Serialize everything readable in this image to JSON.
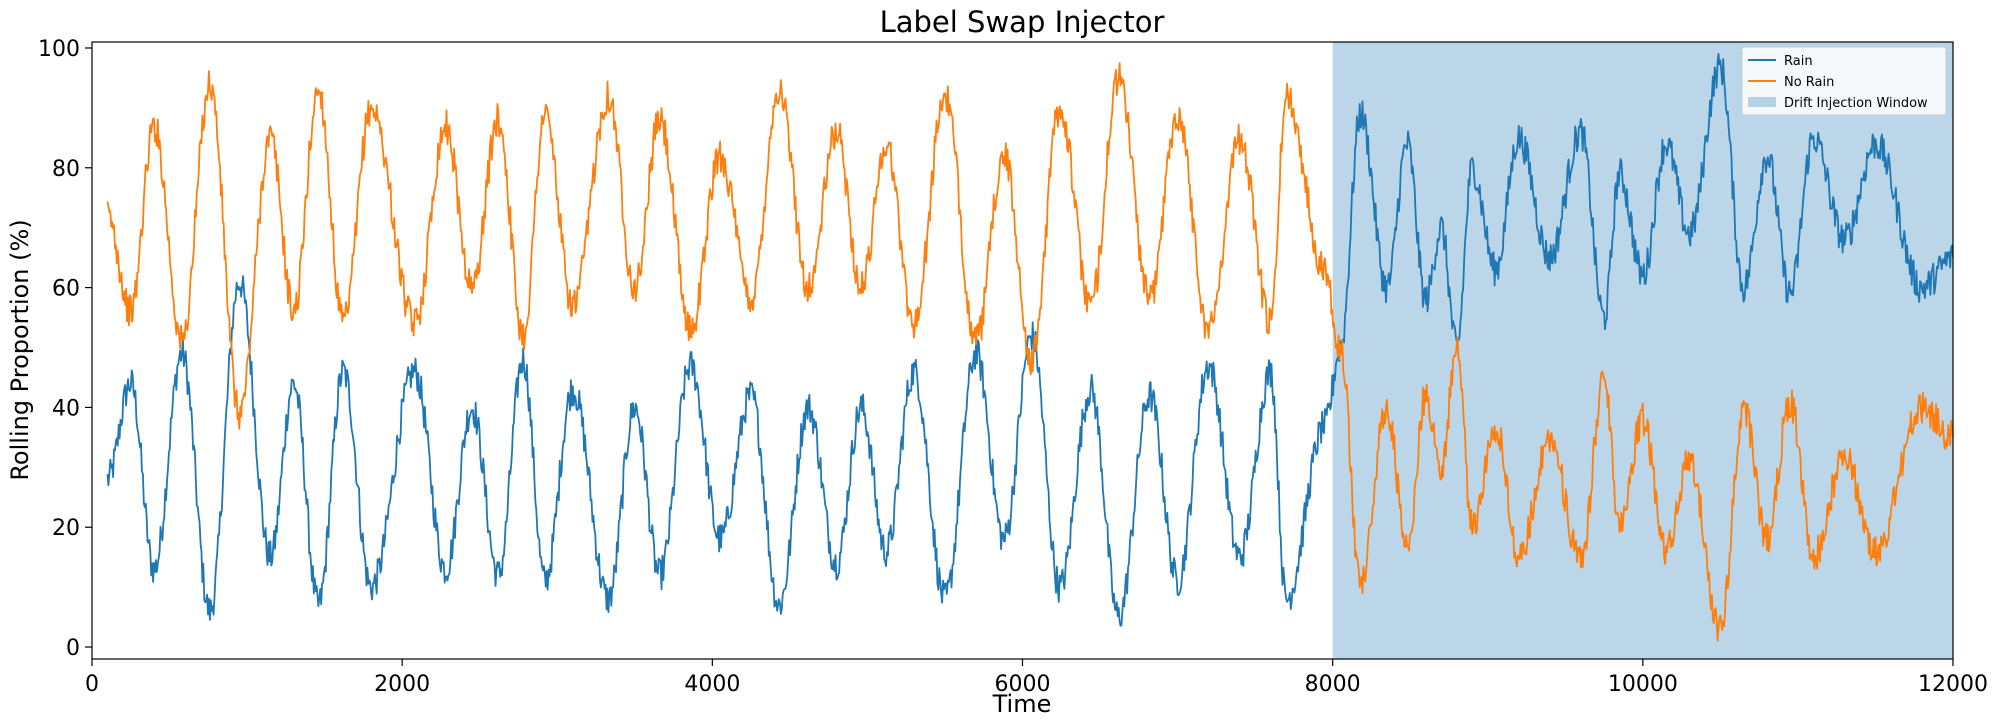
{
  "chart_data": {
    "type": "line",
    "title": "Label Swap Injector",
    "xlabel": "Time",
    "ylabel": "Rolling Proportion (%)",
    "xlim": [
      0,
      12000
    ],
    "ylim": [
      -2,
      101
    ],
    "xticks": [
      0,
      2000,
      4000,
      6000,
      8000,
      10000,
      12000
    ],
    "yticks": [
      0,
      20,
      40,
      60,
      80,
      100
    ],
    "grid": false,
    "legend_position": "top-right",
    "x": [
      100,
      250,
      400,
      580,
      760,
      950,
      1150,
      1300,
      1460,
      1620,
      1800,
      2080,
      2280,
      2450,
      2620,
      2780,
      2920,
      3100,
      3330,
      3500,
      3660,
      3860,
      4050,
      4250,
      4430,
      4620,
      4800,
      4960,
      5120,
      5300,
      5500,
      5700,
      5880,
      6060,
      6240,
      6440,
      6620,
      6820,
      7000,
      7200,
      7400,
      7600,
      7700,
      7950,
      8050,
      8180,
      8350,
      8480,
      8600,
      8700,
      8800,
      8900,
      9050,
      9200,
      9400,
      9600,
      9750,
      9850,
      10000,
      10150,
      10300,
      10500,
      10650,
      10800,
      10950,
      11100,
      11300,
      11500,
      11800,
      12000
    ],
    "series": [
      {
        "name": "Rain",
        "color": "#1f77b4",
        "values": [
          28,
          44,
          13,
          49,
          6,
          61,
          15,
          44,
          7,
          46,
          10,
          46,
          13,
          40,
          12,
          48,
          11,
          43,
          8,
          40,
          12,
          47,
          18,
          42,
          7,
          40,
          14,
          40,
          16,
          46,
          8,
          49,
          18,
          52,
          10,
          43,
          5,
          42,
          11,
          47,
          15,
          46,
          8,
          37,
          50,
          89,
          60,
          84,
          58,
          70,
          50,
          80,
          63,
          85,
          65,
          86,
          55,
          79,
          62,
          84,
          69,
          97,
          60,
          82,
          59,
          85,
          68,
          84,
          60,
          65
        ]
      },
      {
        "name": "No Rain",
        "color": "#ff7f0e",
        "values": [
          72,
          56,
          87,
          51,
          94,
          39,
          85,
          56,
          93,
          54,
          90,
          54,
          87,
          60,
          88,
          52,
          89,
          57,
          92,
          60,
          88,
          53,
          82,
          58,
          93,
          60,
          86,
          60,
          84,
          54,
          92,
          51,
          82,
          48,
          90,
          57,
          95,
          58,
          89,
          53,
          85,
          54,
          92,
          63,
          50,
          11,
          40,
          16,
          42,
          30,
          50,
          20,
          37,
          15,
          35,
          14,
          45,
          21,
          38,
          16,
          31,
          3,
          40,
          18,
          41,
          15,
          32,
          16,
          40,
          35
        ]
      }
    ],
    "shaded_regions": [
      {
        "name": "Drift Injection Window",
        "x_start": 8000,
        "x_end": 12000,
        "color": "#1f77b4",
        "alpha": 0.3
      }
    ]
  }
}
